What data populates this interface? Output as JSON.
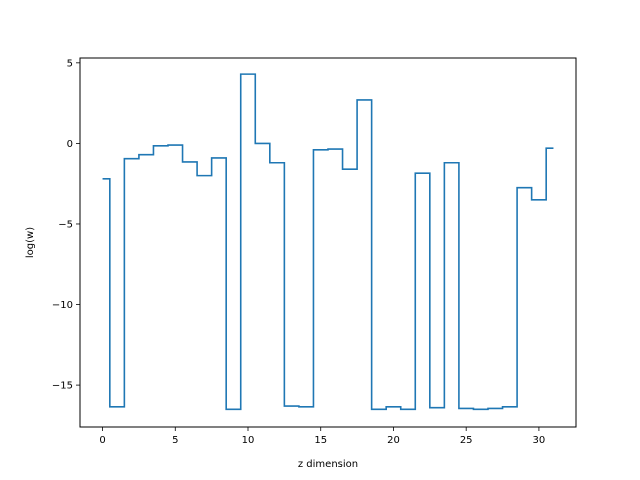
{
  "chart_data": {
    "type": "line",
    "drawstyle": "steps-mid",
    "xlabel": "z dimension",
    "ylabel": "log(w)",
    "xlim": [
      -1.55,
      32.55
    ],
    "ylim": [
      -17.6,
      5.3
    ],
    "xticks": [
      0,
      5,
      10,
      15,
      20,
      25,
      30
    ],
    "yticks": [
      5,
      0,
      -5,
      -10,
      -15
    ],
    "ytick_labels": [
      "5",
      "0",
      "−5",
      "−10",
      "−15"
    ],
    "grid": false,
    "color": "#1f77b4",
    "x": [
      0,
      1,
      2,
      3,
      4,
      5,
      6,
      7,
      8,
      9,
      10,
      11,
      12,
      13,
      14,
      15,
      16,
      17,
      18,
      19,
      20,
      21,
      22,
      23,
      24,
      25,
      26,
      27,
      28,
      29,
      30,
      31
    ],
    "values": [
      -2.2,
      -16.35,
      -0.95,
      -0.7,
      -0.15,
      -0.1,
      -1.15,
      -2.0,
      -0.9,
      -16.5,
      4.3,
      0.0,
      -1.2,
      -16.3,
      -16.35,
      -0.4,
      -0.35,
      -1.6,
      2.7,
      -16.5,
      -16.35,
      -16.5,
      -1.85,
      -16.4,
      -1.2,
      -16.45,
      -16.5,
      -16.45,
      -16.35,
      -2.75,
      -3.5,
      -0.3
    ]
  }
}
